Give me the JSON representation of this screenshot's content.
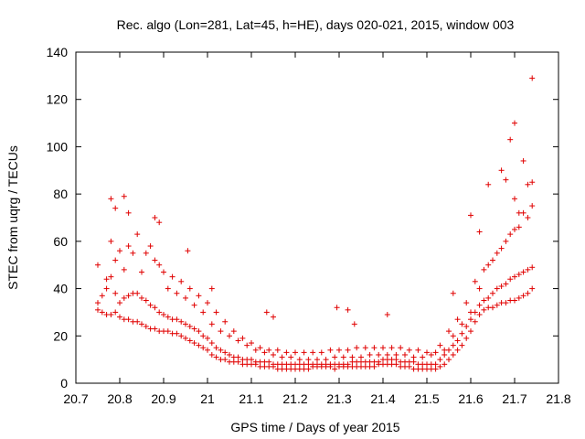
{
  "chart_data": {
    "type": "scatter",
    "title": "Rec. algo (Lon=281, Lat=45, h=HE), days 020-021, 2015, window 003",
    "xlabel": "GPS time / Days of year 2015",
    "ylabel": "STEC from uqrg / TECUs",
    "xlim": [
      20.7,
      21.8
    ],
    "ylim": [
      0,
      140
    ],
    "xticks": [
      "20.7",
      "20.8",
      "20.9",
      "21",
      "21.1",
      "21.2",
      "21.3",
      "21.4",
      "21.5",
      "21.6",
      "21.7",
      "21.8"
    ],
    "yticks": [
      "0",
      "20",
      "40",
      "60",
      "80",
      "100",
      "120",
      "140"
    ],
    "grid": false,
    "marker": "plus",
    "color": "#e00000",
    "series": [
      {
        "x": [
          20.75,
          20.76,
          20.77,
          20.78,
          20.79,
          20.8,
          20.81,
          20.82,
          20.83,
          20.84,
          20.85,
          20.86,
          20.87,
          20.88,
          20.89,
          20.9,
          20.91,
          20.92,
          20.93,
          20.94,
          20.95,
          20.96,
          20.97,
          20.98,
          20.99,
          21.0,
          21.01,
          21.02,
          21.03,
          21.04,
          21.05,
          21.06,
          21.07,
          21.08,
          21.09,
          21.1,
          21.11,
          21.12,
          21.13,
          21.14,
          21.15,
          21.16,
          21.17,
          21.18,
          21.19,
          21.2,
          21.21,
          21.22,
          21.23,
          21.24,
          21.25,
          21.26,
          21.27,
          21.28,
          21.29,
          21.3,
          21.31,
          21.32,
          21.33,
          21.34,
          21.35,
          21.36,
          21.37,
          21.38,
          21.39,
          21.4,
          21.41,
          21.42,
          21.43,
          21.44,
          21.45,
          21.46,
          21.47,
          21.48,
          21.49,
          21.5,
          21.51,
          21.52,
          21.53,
          21.54,
          21.55,
          21.56,
          21.57,
          21.58,
          21.59,
          21.6,
          21.61,
          21.62,
          21.63,
          21.64,
          21.65,
          21.66,
          21.67,
          21.68,
          21.69,
          21.7,
          21.71,
          21.72,
          21.73,
          21.74,
          20.75,
          20.76,
          20.77,
          20.78,
          20.79,
          20.8,
          20.81,
          20.82,
          20.83,
          20.84,
          20.85,
          20.86,
          20.87,
          20.88,
          20.89,
          20.9,
          20.91,
          20.92,
          20.93,
          20.94,
          20.95,
          20.96,
          20.97,
          20.98,
          20.99,
          21.0,
          21.01,
          21.02,
          21.03,
          21.04,
          21.05,
          21.06,
          21.07,
          21.08,
          21.09,
          21.1,
          21.11,
          21.12,
          21.13,
          21.14,
          21.15,
          21.16,
          21.17,
          21.18,
          21.19,
          21.2,
          21.21,
          21.22,
          21.23,
          21.24,
          21.25,
          21.26,
          21.27,
          21.28,
          21.29,
          21.3,
          21.31,
          21.32,
          21.33,
          21.34,
          21.35,
          21.36,
          21.37,
          21.38,
          21.39,
          21.4,
          21.41,
          21.42,
          21.43,
          21.44,
          21.45,
          21.46,
          21.47,
          21.48,
          21.49,
          21.5,
          21.51,
          21.52,
          21.53,
          21.54,
          21.55,
          21.56,
          21.57,
          21.58,
          21.59,
          21.6,
          21.61,
          21.62,
          21.63,
          21.64,
          21.65,
          21.66,
          21.67,
          21.68,
          21.69,
          21.7,
          21.71,
          21.72,
          21.73,
          21.74,
          20.75,
          20.77,
          20.79,
          20.81,
          20.83,
          20.85,
          20.87,
          20.89,
          20.91,
          20.93,
          20.95,
          20.97,
          20.99,
          21.01,
          21.03,
          21.05,
          21.07,
          21.09,
          21.11,
          21.13,
          21.15,
          21.17,
          21.19,
          21.21,
          21.23,
          21.25,
          21.27,
          21.29,
          21.31,
          21.33,
          21.35,
          21.37,
          21.39,
          21.41,
          21.43,
          21.45,
          21.47,
          21.49,
          21.51,
          21.53,
          21.55,
          21.57,
          21.59,
          21.61,
          21.63,
          21.65,
          21.67,
          21.69,
          21.71,
          21.73,
          20.78,
          20.8,
          20.82,
          20.84,
          20.86,
          20.88,
          20.9,
          20.92,
          20.94,
          20.96,
          20.98,
          21.0,
          21.02,
          21.04,
          21.06,
          21.08,
          21.1,
          21.12,
          21.14,
          21.16,
          21.18,
          21.2,
          21.22,
          21.24,
          21.26,
          21.28,
          21.3,
          21.32,
          21.34,
          21.36,
          21.38,
          21.4,
          21.42,
          21.44,
          21.46,
          21.48,
          21.5,
          21.52,
          21.54,
          21.56,
          21.58,
          21.6,
          21.62,
          21.64,
          21.66,
          21.68,
          21.7,
          21.72,
          21.74,
          20.78,
          20.79,
          20.81,
          20.82,
          20.88,
          20.89,
          20.955,
          21.01,
          21.135,
          21.15,
          21.295,
          21.32,
          21.335,
          21.41,
          21.56,
          21.6,
          21.62,
          21.64,
          21.67,
          21.68,
          21.69,
          21.7,
          21.7,
          21.71,
          21.72,
          21.73,
          21.74,
          21.74
        ],
        "y": [
          31,
          30,
          29,
          29,
          30,
          28,
          27,
          27,
          26,
          26,
          25,
          24,
          23,
          23,
          22,
          22,
          22,
          21,
          21,
          20,
          19,
          18,
          17,
          16,
          15,
          14,
          12,
          11,
          10,
          10,
          9,
          9,
          9,
          8,
          8,
          8,
          8,
          7,
          7,
          7,
          7,
          6,
          6,
          6,
          6,
          6,
          6,
          6,
          6,
          7,
          7,
          7,
          7,
          7,
          6,
          7,
          7,
          7,
          7,
          7,
          7,
          7,
          7,
          7,
          8,
          8,
          8,
          8,
          8,
          7,
          7,
          7,
          6,
          6,
          6,
          6,
          6,
          6,
          7,
          8,
          10,
          12,
          14,
          16,
          19,
          22,
          26,
          29,
          31,
          32,
          32,
          33,
          34,
          34,
          35,
          35,
          36,
          37,
          38,
          40,
          34,
          37,
          40,
          45,
          38,
          34,
          36,
          37,
          38,
          38,
          36,
          35,
          33,
          32,
          30,
          29,
          28,
          27,
          27,
          26,
          25,
          24,
          23,
          22,
          20,
          19,
          17,
          15,
          14,
          13,
          12,
          11,
          11,
          10,
          10,
          10,
          9,
          9,
          9,
          9,
          8,
          8,
          8,
          8,
          8,
          8,
          8,
          8,
          8,
          8,
          8,
          8,
          8,
          8,
          8,
          8,
          8,
          8,
          9,
          9,
          9,
          9,
          9,
          9,
          9,
          10,
          10,
          10,
          10,
          9,
          9,
          9,
          9,
          8,
          8,
          8,
          8,
          8,
          10,
          12,
          14,
          16,
          18,
          21,
          24,
          27,
          30,
          33,
          35,
          36,
          38,
          40,
          41,
          42,
          44,
          45,
          46,
          47,
          48,
          49,
          50,
          44,
          52,
          48,
          55,
          47,
          58,
          50,
          40,
          38,
          36,
          33,
          30,
          25,
          22,
          20,
          18,
          16,
          14,
          13,
          12,
          11,
          11,
          10,
          10,
          10,
          10,
          11,
          11,
          11,
          11,
          12,
          12,
          12,
          12,
          12,
          11,
          11,
          12,
          16,
          22,
          27,
          34,
          43,
          48,
          52,
          57,
          63,
          66,
          70,
          60,
          56,
          58,
          63,
          55,
          52,
          47,
          45,
          43,
          40,
          37,
          34,
          30,
          26,
          22,
          19,
          17,
          15,
          14,
          14,
          13,
          13,
          13,
          13,
          13,
          14,
          14,
          14,
          15,
          15,
          15,
          15,
          15,
          15,
          14,
          14,
          13,
          13,
          14,
          20,
          25,
          30,
          40,
          50,
          55,
          60,
          65,
          72,
          75,
          78,
          74,
          79,
          72,
          70,
          68,
          56,
          40,
          30,
          28,
          32,
          31,
          25,
          29,
          38,
          71,
          64,
          84,
          90,
          86,
          103,
          110,
          78,
          72,
          94,
          84,
          129,
          85
        ]
      }
    ]
  }
}
